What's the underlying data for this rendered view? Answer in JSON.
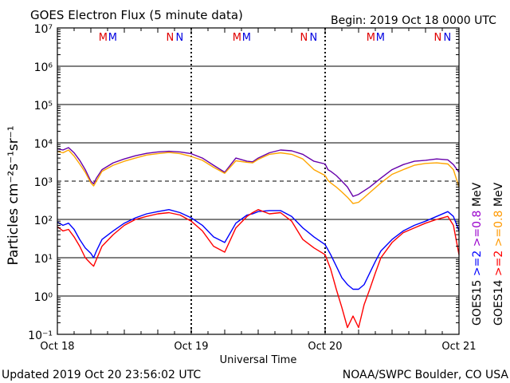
{
  "chart_data": {
    "type": "line",
    "title": "GOES Electron Flux (5 minute data)",
    "begin_text": "Begin: 2019 Oct 18 0000 UTC",
    "xlabel": "Universal Time",
    "ylabel": "Particles cm⁻²s⁻¹sr⁻¹",
    "x_tick_labels": [
      "Oct 18",
      "Oct 19",
      "Oct 20",
      "Oct 21"
    ],
    "y_tick_labels": [
      "10⁷",
      "10⁶",
      "10⁵",
      "10⁴",
      "10³",
      "10²",
      "10¹",
      "10⁰",
      "10⁻¹"
    ],
    "y_scale": "log",
    "ylim": [
      0.1,
      10000000
    ],
    "xlim_hours": [
      0,
      72
    ],
    "grid": "horizontal lines at each decade; dashed line at 10³",
    "day_markers": [
      {
        "M_hour": 8.2,
        "N_hour": 20.2
      },
      {
        "M_hour": 32.2,
        "N_hour": 44.2
      },
      {
        "M_hour": 56.2,
        "N_hour": 68.2
      }
    ],
    "legend": [
      {
        "text": "GOES15",
        "color": "#000000"
      },
      {
        "text": ">=2",
        "color": "#0000ff"
      },
      {
        "text": ">=0.8",
        "color": "#9900cc"
      },
      {
        "text": "MeV",
        "color": "#000000"
      },
      {
        "text": "GOES14",
        "color": "#000000"
      },
      {
        "text": ">=2",
        "color": "#ff0000"
      },
      {
        "text": ">=0.8",
        "color": "#ff9900"
      },
      {
        "text": "MeV",
        "color": "#000000"
      }
    ],
    "series": [
      {
        "color": "#6600aa",
        "x": [
          0,
          1,
          2,
          3,
          4,
          5,
          6,
          6.5,
          7,
          8,
          10,
          12,
          14,
          16,
          18,
          20,
          22,
          24,
          26,
          28,
          30,
          32,
          34,
          35,
          36,
          38,
          40,
          42,
          44,
          46,
          48,
          48.5,
          49,
          50,
          51,
          52,
          53,
          54,
          56,
          58,
          60,
          62,
          64,
          66,
          68,
          70,
          71,
          72
        ],
        "y": [
          7000,
          6500,
          7500,
          5500,
          3500,
          2000,
          1000,
          850,
          1200,
          2000,
          3000,
          3800,
          4600,
          5300,
          5800,
          6000,
          5800,
          5200,
          4000,
          2600,
          1700,
          4000,
          3300,
          3200,
          4000,
          5500,
          6500,
          6200,
          5000,
          3300,
          2800,
          2000,
          1800,
          1400,
          1000,
          700,
          400,
          450,
          700,
          1200,
          2000,
          2700,
          3300,
          3500,
          3800,
          3600,
          2700,
          1700
        ]
      },
      {
        "color": "#ffa500",
        "x": [
          0,
          1,
          2,
          3,
          4,
          5,
          6,
          6.5,
          7,
          8,
          10,
          12,
          14,
          16,
          18,
          20,
          22,
          24,
          26,
          28,
          30,
          32,
          34,
          35,
          36,
          38,
          40,
          42,
          44,
          46,
          48,
          48.5,
          49,
          50,
          51,
          52,
          53,
          54,
          56,
          58,
          60,
          62,
          64,
          66,
          68,
          70,
          71,
          72
        ],
        "y": [
          6000,
          5500,
          6500,
          4500,
          2800,
          1700,
          900,
          750,
          1000,
          1800,
          2600,
          3300,
          4000,
          4800,
          5200,
          5600,
          5200,
          4400,
          3500,
          2300,
          1600,
          3400,
          3100,
          3000,
          3700,
          5000,
          5500,
          5000,
          3800,
          2000,
          1400,
          1050,
          900,
          700,
          520,
          380,
          260,
          280,
          500,
          900,
          1500,
          2000,
          2600,
          2900,
          3000,
          2800,
          2000,
          700
        ]
      },
      {
        "color": "#0000ff",
        "x": [
          0,
          1,
          2,
          3,
          4,
          5,
          6,
          6.5,
          7,
          8,
          10,
          12,
          14,
          16,
          18,
          20,
          22,
          24,
          26,
          28,
          30,
          32,
          34,
          35,
          36,
          38,
          40,
          42,
          44,
          46,
          48,
          49,
          50,
          51,
          52,
          53,
          54,
          55,
          56,
          57,
          58,
          60,
          62,
          64,
          66,
          68,
          70,
          71,
          72
        ],
        "y": [
          85,
          70,
          80,
          55,
          30,
          18,
          13,
          10,
          15,
          30,
          50,
          80,
          110,
          140,
          160,
          180,
          150,
          110,
          70,
          35,
          25,
          80,
          130,
          140,
          160,
          170,
          170,
          120,
          60,
          35,
          22,
          12,
          6,
          3,
          2,
          1.5,
          1.5,
          2,
          4,
          8,
          15,
          30,
          50,
          70,
          90,
          120,
          160,
          120,
          50
        ]
      },
      {
        "color": "#ff0000",
        "x": [
          0,
          1,
          2,
          3,
          4,
          5,
          6,
          6.5,
          7,
          8,
          10,
          12,
          14,
          16,
          18,
          20,
          22,
          24,
          26,
          28,
          30,
          32,
          34,
          35,
          36,
          38,
          40,
          42,
          44,
          46,
          48,
          49,
          50,
          51,
          52,
          53,
          54,
          55,
          56,
          57,
          58,
          60,
          62,
          64,
          66,
          68,
          70,
          71,
          72
        ],
        "y": [
          65,
          50,
          55,
          35,
          20,
          10,
          7,
          6,
          9,
          20,
          40,
          70,
          100,
          120,
          140,
          150,
          130,
          90,
          50,
          20,
          14,
          60,
          120,
          150,
          180,
          140,
          150,
          90,
          30,
          18,
          12,
          5,
          1.5,
          0.5,
          0.15,
          0.3,
          0.15,
          0.6,
          1.5,
          4,
          10,
          25,
          45,
          60,
          80,
          100,
          120,
          70,
          12
        ]
      }
    ],
    "footer_left": "Updated 2019 Oct 20 23:56:02 UTC",
    "footer_right": "NOAA/SWPC Boulder, CO USA"
  }
}
